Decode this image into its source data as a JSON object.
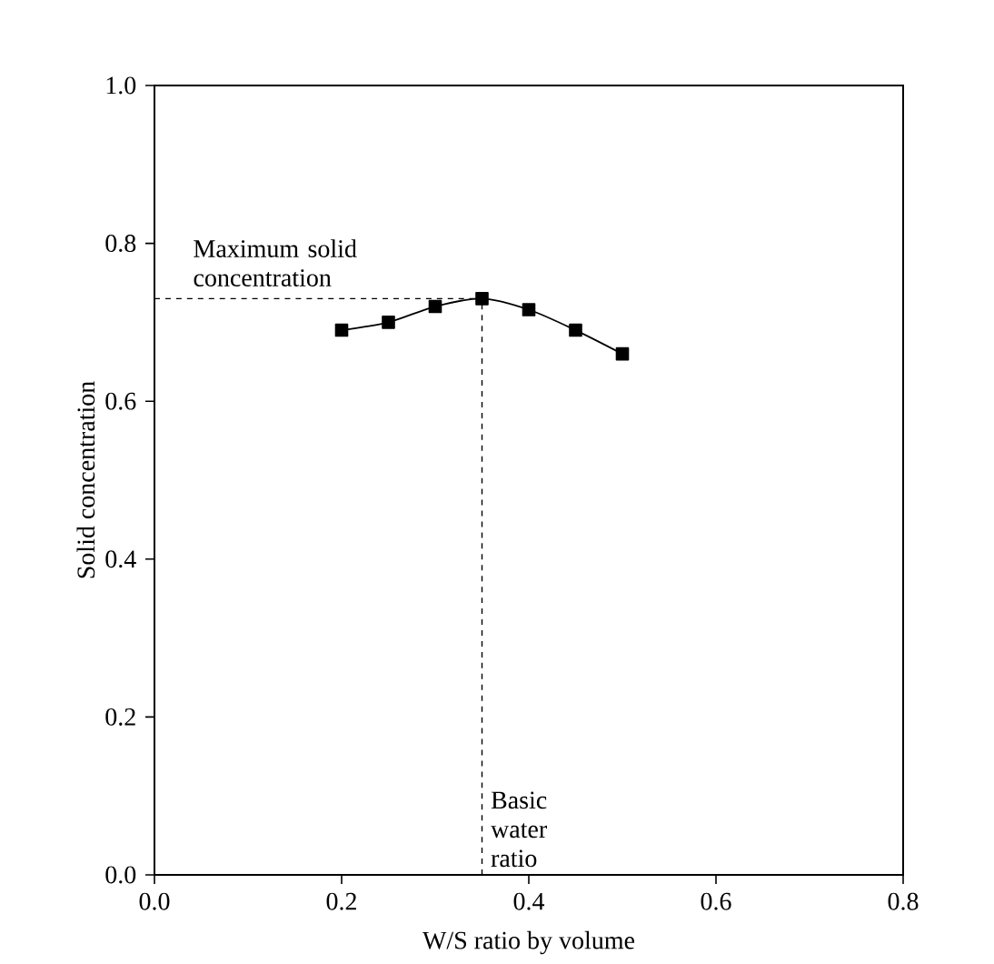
{
  "chart_data": {
    "type": "line",
    "xlabel": "W/S ratio by volume",
    "ylabel": "Solid concentration",
    "x": [
      0.2,
      0.25,
      0.3,
      0.35,
      0.4,
      0.45,
      0.5
    ],
    "series": [
      {
        "color": "#000000",
        "values": [
          0.69,
          0.7,
          0.72,
          0.73,
          0.716,
          0.69,
          0.66
        ]
      }
    ],
    "marker": "square",
    "line_style": "solid",
    "xlim": [
      0,
      0.8
    ],
    "xticks": [
      {
        "value": 0,
        "label": "0.0"
      },
      0.2,
      0.4,
      0.6,
      0.8
    ],
    "ylim": [
      0,
      1
    ],
    "yticks": [
      {
        "value": 0,
        "label": "0.0"
      },
      0.2,
      0.4,
      0.6,
      0.8,
      {
        "value": 1,
        "label": "1.0"
      }
    ],
    "grid": false,
    "ref_lines": [
      {
        "axis": "y",
        "value": 0.73,
        "line_style": "dashed"
      },
      {
        "axis": "x",
        "value": 0.35,
        "line_style": "dashed"
      }
    ],
    "annotations": [
      {
        "text": "Maximum solid concentration",
        "x": 0.15,
        "y": 0.73
      },
      {
        "text": "Basic water ratio",
        "x": 0.35,
        "y": 0
      }
    ]
  }
}
